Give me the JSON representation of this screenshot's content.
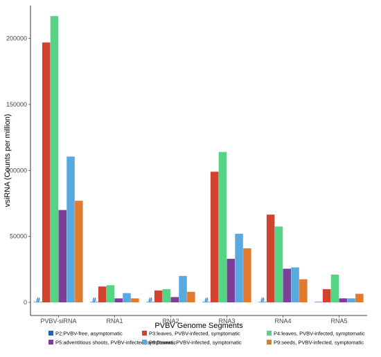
{
  "chart_data": {
    "type": "bar",
    "title": "",
    "xlabel": "PVBV Genome Segments",
    "ylabel": "vsiRNA (Counts per million)",
    "ylim": [
      0,
      225000
    ],
    "yticks": [
      0,
      50000,
      100000,
      150000,
      200000
    ],
    "ytick_labels": [
      "0",
      "50000",
      "100000",
      "150000",
      "200000"
    ],
    "categories": [
      "PVBV-siRNA",
      "RNA1",
      "RNA2",
      "RNA3",
      "RNA4",
      "RNA5"
    ],
    "series": [
      {
        "name": "P2:PVBV-free, asymptomatic",
        "color": "#2166ac",
        "values": [
          0,
          0,
          0,
          0,
          0,
          0
        ]
      },
      {
        "name": "P3:leaves, PVBV-infected, symptomatic",
        "color": "#d1432f",
        "values": [
          197000,
          12000,
          9000,
          99000,
          66500,
          10000
        ]
      },
      {
        "name": "P4:leaves, PVBV-infected, symptomatic",
        "color": "#55d485",
        "values": [
          217000,
          13000,
          10000,
          114000,
          57500,
          21000
        ]
      },
      {
        "name": "P5:adventitious shoots, PVBV-infected, symptomatic",
        "color": "#7b3f98",
        "values": [
          70000,
          3000,
          4000,
          33000,
          25500,
          3000
        ]
      },
      {
        "name": "P8:flowers, PVBV-infected, symptomatic",
        "color": "#5aa8e0",
        "values": [
          110500,
          7000,
          20000,
          52000,
          26500,
          3000
        ]
      },
      {
        "name": "P9:seeds, PVBV-infected, symptomatic",
        "color": "#e07a2e",
        "values": [
          77000,
          3000,
          8000,
          41000,
          17500,
          6500
        ]
      }
    ],
    "annotations": [
      {
        "category": "PVBV-siRNA",
        "text": "#"
      },
      {
        "category": "RNA1",
        "text": "#"
      },
      {
        "category": "RNA2",
        "text": "#"
      },
      {
        "category": "RNA3",
        "text": "#"
      },
      {
        "category": "RNA4",
        "text": "#"
      }
    ],
    "grid": false,
    "legend_position": "bottom"
  }
}
